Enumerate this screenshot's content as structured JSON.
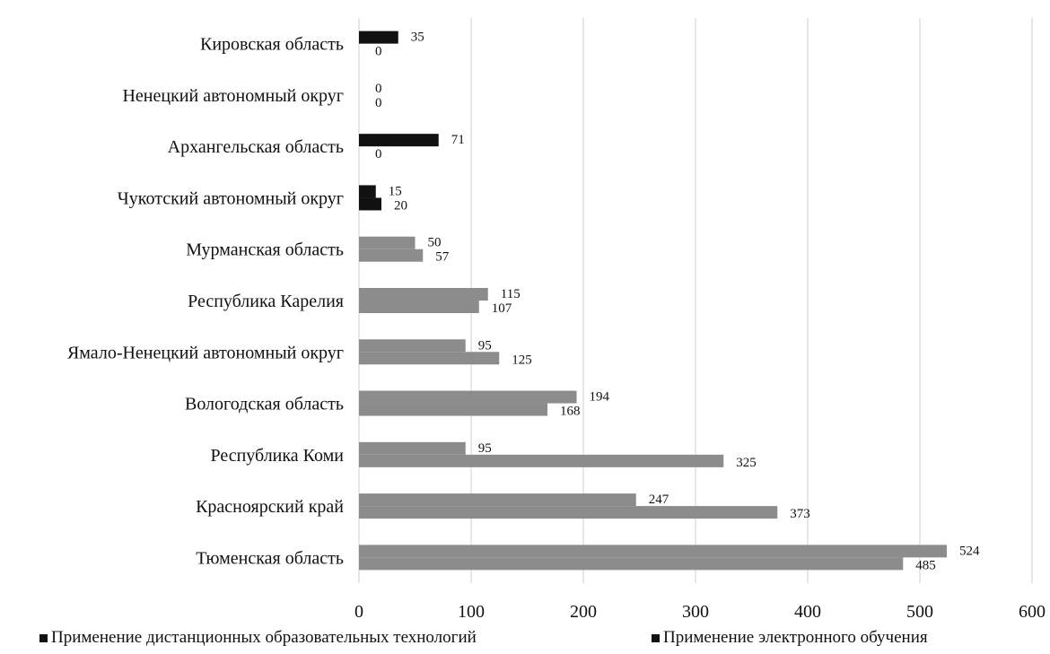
{
  "chart_data": {
    "type": "bar",
    "orientation": "horizontal",
    "categories": [
      "Кировская область",
      "Ненецкий автономный округ",
      "Архангельская область",
      "Чукотский автономный округ",
      "Мурманская область",
      "Республика Карелия",
      "Ямало-Ненецкий автономный округ",
      "Вологодская область",
      "Республика Коми",
      "Красноярский край",
      "Тюменская область"
    ],
    "series": [
      {
        "name": "Применение дистанционных образовательных технологий",
        "values": [
          35,
          0,
          71,
          15,
          50,
          115,
          95,
          194,
          95,
          247,
          524
        ]
      },
      {
        "name": "Применение электронного обучения",
        "values": [
          0,
          0,
          0,
          20,
          57,
          107,
          125,
          168,
          325,
          373,
          485
        ]
      }
    ],
    "x_ticks": [
      "0",
      "100",
      "200",
      "300",
      "400",
      "500",
      "600"
    ],
    "xlim": [
      0,
      600
    ],
    "grid": "vertical",
    "legend_position": "bottom",
    "colors": {
      "highlight_bars": "#111111",
      "normal_bars": "#8c8c8c",
      "grid": "#cfcfcf"
    }
  }
}
